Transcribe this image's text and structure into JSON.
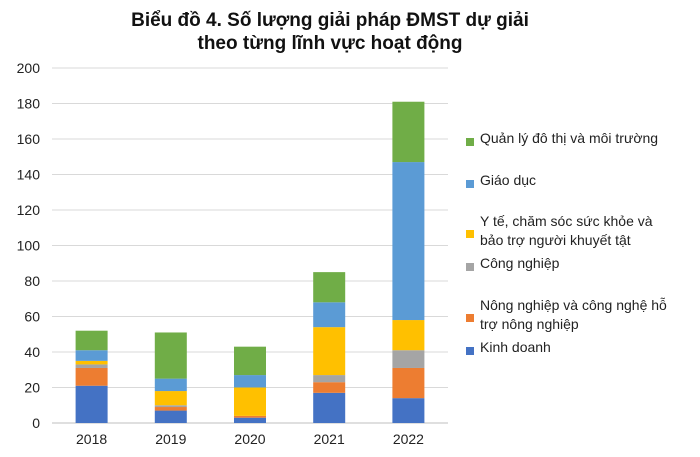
{
  "chart_data": {
    "type": "bar",
    "stacked": true,
    "title_lines": [
      "Biểu đồ 4. Số lượng giải pháp ĐMST dự giải",
      "theo từng lĩnh vực hoạt động"
    ],
    "categories": [
      "2018",
      "2019",
      "2020",
      "2021",
      "2022"
    ],
    "ylim": [
      0,
      200
    ],
    "yticks": [
      0,
      20,
      40,
      60,
      80,
      100,
      120,
      140,
      160,
      180,
      200
    ],
    "grid": true,
    "legend_position": "right",
    "series": [
      {
        "name": "Kinh doanh",
        "legend_lines": [
          "Kinh doanh"
        ],
        "color": "#4472C4",
        "values": [
          21,
          7,
          3,
          17,
          14
        ]
      },
      {
        "name": "Nông nghiệp và công nghệ hỗ trợ nông nghiệp",
        "legend_lines": [
          "Nông nghiệp và công nghệ hỗ",
          "trợ nông nghiệp"
        ],
        "color": "#ED7D31",
        "values": [
          10,
          2,
          1,
          6,
          17
        ]
      },
      {
        "name": "Công nghiệp",
        "legend_lines": [
          "Công nghiệp"
        ],
        "color": "#A5A5A5",
        "values": [
          2,
          1,
          0,
          4,
          10
        ]
      },
      {
        "name": "Y tế, chăm sóc sức khỏe và bảo trợ người khuyết tật",
        "legend_lines": [
          "Y tế, chăm sóc sức khỏe và",
          "bảo trợ người khuyết tật"
        ],
        "color": "#FFC000",
        "values": [
          2,
          8,
          16,
          27,
          17
        ]
      },
      {
        "name": "Giáo dục",
        "legend_lines": [
          "Giáo dục"
        ],
        "color": "#5B9BD5",
        "values": [
          6,
          7,
          7,
          14,
          89
        ]
      },
      {
        "name": "Quản lý đô  thị và môi trường",
        "legend_lines": [
          "Quản lý đô  thị và môi trường"
        ],
        "color": "#70AD47",
        "values": [
          11,
          26,
          16,
          17,
          34
        ]
      }
    ]
  }
}
